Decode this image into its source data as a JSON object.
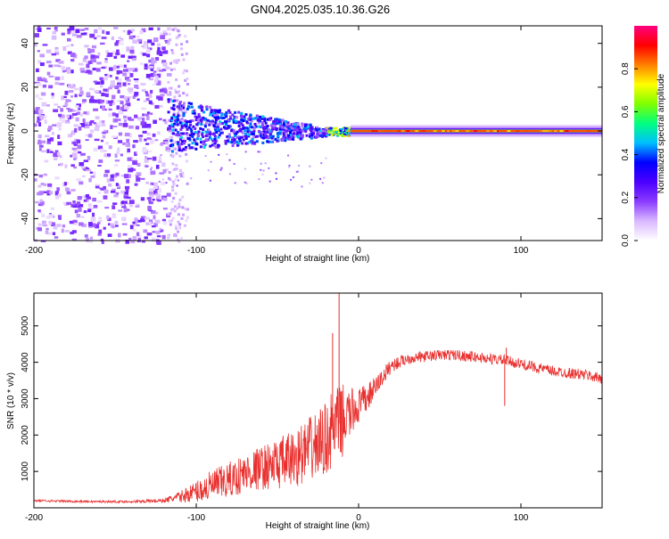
{
  "title": "GN04.2025.035.10.36.G26",
  "chart_data": [
    {
      "type": "heatmap",
      "xlabel": "Height of straight line (km)",
      "ylabel": "Frequency (Hz)",
      "xlim": [
        -200,
        150
      ],
      "ylim": [
        -50,
        48
      ],
      "xticks": [
        -200,
        -100,
        0,
        100
      ],
      "xtick_labels": [
        "-200",
        "-100",
        "0",
        "100"
      ],
      "yticks": [
        -40,
        -20,
        0,
        20,
        40
      ],
      "ytick_labels": [
        "-40",
        "-20",
        "0",
        "20",
        "40"
      ],
      "colorbar": {
        "label": "Normalized spectral amplitude",
        "range": [
          0,
          1
        ],
        "ticks": [
          0.0,
          0.2,
          0.4,
          0.6,
          0.8
        ],
        "tick_labels": [
          "0.0",
          "0.2",
          "0.4",
          "0.6",
          "0.8"
        ],
        "colors": [
          "#ffffff",
          "#d9b8ff",
          "#8a3cff",
          "#4b00ff",
          "#0000ff",
          "#00bfff",
          "#00ff80",
          "#7fff00",
          "#ffff00",
          "#ff8000",
          "#ff0000",
          "#ff0080"
        ]
      },
      "regions": [
        {
          "name": "noise",
          "x": [
            -200,
            -118
          ],
          "freq": [
            -50,
            48
          ],
          "level": 0.12
        },
        {
          "name": "transition",
          "x": [
            -118,
            -20
          ],
          "freq": [
            -6,
            14
          ],
          "level": 0.3
        },
        {
          "name": "signal-line",
          "x": [
            -5,
            150
          ],
          "freq": [
            -1,
            1
          ],
          "level": 0.95
        }
      ]
    },
    {
      "type": "line",
      "xlabel": "Height of straight line (km)",
      "ylabel": "SNR (10 * v/v)",
      "xlim": [
        -200,
        150
      ],
      "ylim": [
        0,
        5900
      ],
      "xticks": [
        -200,
        -100,
        0,
        100
      ],
      "xtick_labels": [
        "-200",
        "-100",
        "0",
        "100"
      ],
      "yticks": [
        1000,
        2000,
        3000,
        4000,
        5000
      ],
      "ytick_labels": [
        "1000",
        "2000",
        "3000",
        "4000",
        "5000"
      ],
      "color": "#e8312f",
      "series": [
        {
          "name": "SNR",
          "x": [
            -200,
            -180,
            -160,
            -140,
            -120,
            -110,
            -100,
            -90,
            -80,
            -70,
            -60,
            -50,
            -40,
            -30,
            -20,
            -15,
            -10,
            -5,
            0,
            5,
            10,
            20,
            30,
            40,
            50,
            60,
            70,
            80,
            90,
            100,
            110,
            120,
            130,
            140,
            150
          ],
          "y": [
            200,
            180,
            170,
            170,
            200,
            300,
            450,
            600,
            750,
            950,
            1100,
            1200,
            1350,
            1600,
            1900,
            2200,
            2400,
            2600,
            2800,
            3000,
            3300,
            3900,
            4100,
            4150,
            4200,
            4200,
            4150,
            4100,
            4050,
            3950,
            3850,
            3750,
            3700,
            3650,
            3550
          ],
          "noise": [
            30,
            30,
            30,
            30,
            60,
            150,
            300,
            450,
            500,
            550,
            600,
            700,
            800,
            900,
            1000,
            1100,
            1000,
            700,
            500,
            400,
            300,
            200,
            150,
            150,
            150,
            150,
            150,
            150,
            150,
            150,
            150,
            150,
            150,
            150,
            150
          ]
        }
      ],
      "spikes": [
        {
          "x": -16,
          "y": 4800
        },
        {
          "x": -12,
          "y": 5900
        },
        {
          "x": 91,
          "y": 4400
        },
        {
          "x": 90,
          "y": 2800
        }
      ]
    }
  ]
}
